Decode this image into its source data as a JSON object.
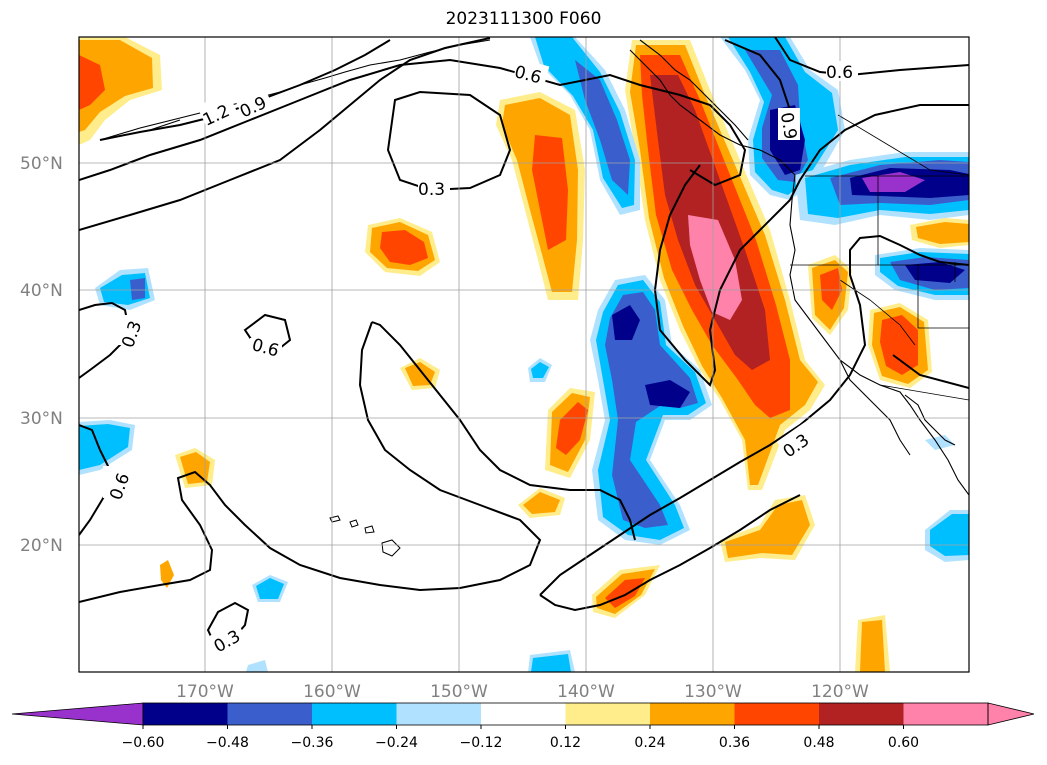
{
  "title": "2023111300 F060",
  "map": {
    "lat_labels": [
      "50°N",
      "40°N",
      "30°N",
      "20°N"
    ],
    "lon_labels": [
      "170°W",
      "160°W",
      "150°W",
      "140°W",
      "130°W",
      "120°W"
    ],
    "contour_labels": [
      "1.2",
      "0.9",
      "0.6",
      "0.3",
      "0.6",
      "0.9",
      "0.6",
      "0.3",
      "0.6",
      "0.3",
      "0.3"
    ]
  },
  "colorbar": {
    "colors": [
      "#9932cc",
      "#00008b",
      "#3a5fcd",
      "#00bfff",
      "#b0e2ff",
      "#ffffff",
      "#ffec8b",
      "#ffa500",
      "#ff4500",
      "#b22222",
      "#ff82ab",
      "#ff82ab"
    ],
    "tick_labels": [
      "−0.60",
      "−0.48",
      "−0.36",
      "−0.24",
      "−0.12",
      "0.12",
      "0.24",
      "0.36",
      "0.48",
      "0.60"
    ]
  },
  "legend_colors": {
    "neg_strong": "#00008b",
    "neg_mid": "#3a5fcd",
    "neg_light": "#00bfff",
    "neg_pale": "#b0e2ff",
    "pos_pale": "#ffec8b",
    "pos_light": "#ffa500",
    "pos_mid": "#ff4500",
    "pos_strong": "#b22222",
    "pos_max": "#ff82ab",
    "neg_max": "#9932cc"
  }
}
